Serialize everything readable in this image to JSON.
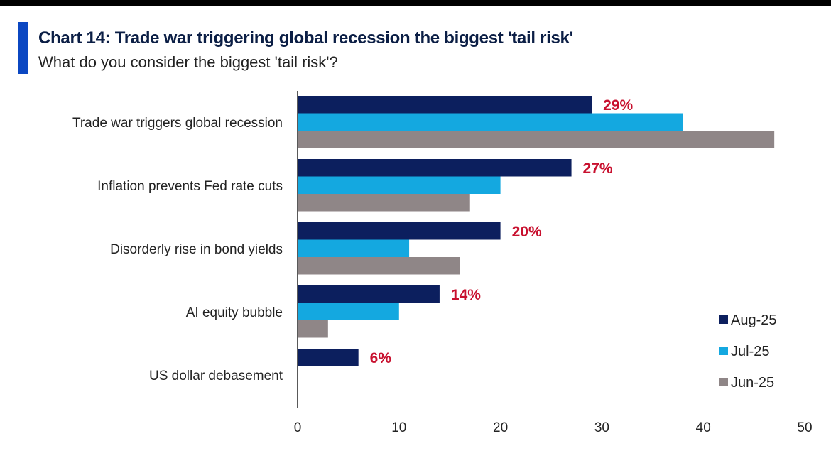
{
  "title": "Chart 14: Trade war triggering global recession the biggest 'tail risk'",
  "subtitle": "What do you consider the biggest 'tail risk'?",
  "colors": {
    "accent": "#0b47c2",
    "Aug-25": "#0c1f5e",
    "Jul-25": "#14a8e0",
    "Jun-25": "#8f8687",
    "data_label": "#c8102e"
  },
  "chart_data": {
    "type": "bar",
    "orientation": "horizontal",
    "title": "Chart 14: Trade war triggering global recession the biggest 'tail risk'",
    "subtitle": "What do you consider the biggest 'tail risk'?",
    "categories": [
      "Trade war triggers global recession",
      "Inflation prevents Fed rate cuts",
      "Disorderly rise in bond yields",
      "AI equity bubble",
      "US dollar debasement"
    ],
    "series": [
      {
        "name": "Aug-25",
        "values": [
          29,
          27,
          20,
          14,
          6
        ]
      },
      {
        "name": "Jul-25",
        "values": [
          38,
          20,
          11,
          10,
          0
        ]
      },
      {
        "name": "Jun-25",
        "values": [
          47,
          17,
          16,
          3,
          0
        ]
      }
    ],
    "data_labels": [
      "29%",
      "27%",
      "20%",
      "14%",
      "6%"
    ],
    "xlim": [
      0,
      50
    ],
    "xticks": [
      0,
      10,
      20,
      30,
      40,
      50
    ],
    "xlabel": "",
    "ylabel": "",
    "grid": false,
    "legend": [
      "Aug-25",
      "Jul-25",
      "Jun-25"
    ],
    "legend_position": "bottom-right"
  }
}
